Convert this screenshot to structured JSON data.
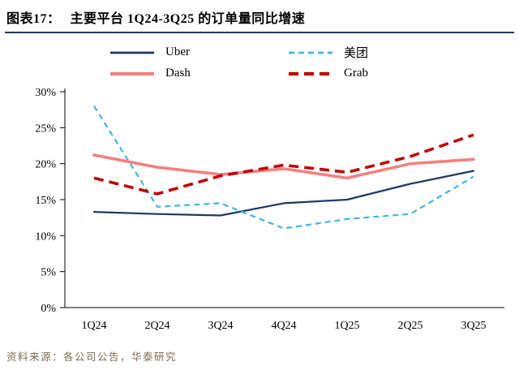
{
  "title": {
    "prefix": "图表17：",
    "text": "主要平台 1Q24-3Q25 的订单量同比增速"
  },
  "source": "资料来源：各公司公告，华泰研究",
  "accent_color": "#1f3864",
  "chart_data": {
    "type": "line",
    "title": "主要平台 1Q24-3Q25 的订单量同比增速",
    "categories": [
      "1Q24",
      "2Q24",
      "3Q24",
      "4Q24",
      "1Q25",
      "2Q25",
      "3Q25"
    ],
    "series": [
      {
        "name": "Uber",
        "color": "#1f3864",
        "width": 2.2,
        "dash": null,
        "values": [
          13.3,
          13.0,
          12.8,
          14.5,
          15.0,
          17.2,
          19.0
        ]
      },
      {
        "name": "美团",
        "color": "#41b5e7",
        "width": 2.2,
        "dash": "7,5",
        "values": [
          28.0,
          14.0,
          14.5,
          11.0,
          12.3,
          13.0,
          18.2
        ]
      },
      {
        "name": "Dash",
        "color": "#f47f7f",
        "width": 3.6,
        "dash": null,
        "values": [
          21.2,
          19.5,
          18.5,
          19.3,
          18.0,
          20.0,
          20.6
        ]
      },
      {
        "name": "Grab",
        "color": "#c00000",
        "width": 3.6,
        "dash": "12,7",
        "values": [
          18.0,
          15.8,
          18.3,
          19.8,
          18.8,
          21.0,
          24.0
        ]
      }
    ],
    "ylim": [
      0,
      30
    ],
    "ytick_values": [
      0,
      5,
      10,
      15,
      20,
      25,
      30
    ],
    "ytick_labels": [
      "0%",
      "5%",
      "10%",
      "15%",
      "20%",
      "25%",
      "30%"
    ],
    "grid": false,
    "legend_position": "top"
  }
}
